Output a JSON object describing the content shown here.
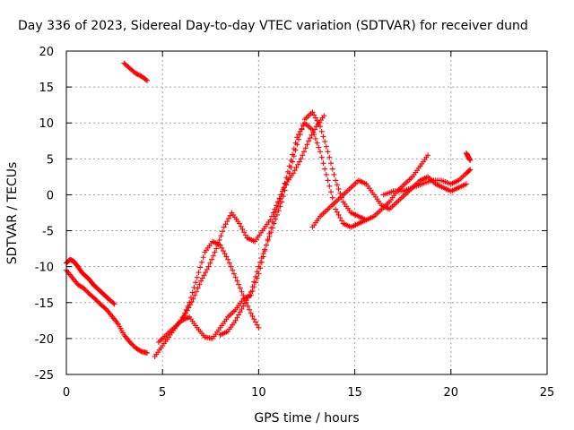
{
  "chart_data": {
    "type": "scatter",
    "title": "Day 336 of 2023, Sidereal Day-to-day VTEC variation (SDTVAR) for receiver dund",
    "xlabel": "GPS time / hours",
    "ylabel": "SDTVAR / TECUs",
    "xlim": [
      0,
      25
    ],
    "ylim": [
      -25,
      20
    ],
    "xticks": [
      "0",
      "5",
      "10",
      "15",
      "20",
      "25"
    ],
    "yticks": [
      "-25",
      "-20",
      "-15",
      "-10",
      "-5",
      "0",
      "5",
      "10",
      "15",
      "20"
    ],
    "grid": true,
    "marker": "plus",
    "color": "#ff0000",
    "series": [
      {
        "name": "arc1",
        "x": [
          0.0,
          0.3,
          0.6,
          0.9,
          1.2,
          1.5,
          1.8,
          2.1,
          2.4,
          2.7,
          3.0,
          3.3,
          3.6,
          3.9,
          4.2
        ],
        "y": [
          -10.5,
          -11.5,
          -12.5,
          -13.0,
          -13.8,
          -14.5,
          -15.3,
          -16.0,
          -17.0,
          -18.0,
          -19.5,
          -20.5,
          -21.3,
          -21.8,
          -22.0
        ]
      },
      {
        "name": "arc2",
        "x": [
          0.0,
          0.2,
          0.4,
          0.6,
          0.8,
          1.0,
          1.2,
          1.4,
          1.6,
          1.8,
          2.0,
          2.2,
          2.5
        ],
        "y": [
          -9.5,
          -9.0,
          -9.3,
          -10.0,
          -10.8,
          -11.3,
          -11.8,
          -12.5,
          -13.0,
          -13.5,
          -14.0,
          -14.5,
          -15.2
        ]
      },
      {
        "name": "arc3",
        "x": [
          3.0,
          3.3,
          3.6,
          3.9,
          4.2
        ],
        "y": [
          18.3,
          17.6,
          16.9,
          16.5,
          15.9
        ]
      },
      {
        "name": "arc4",
        "x": [
          4.6,
          5.0,
          5.4,
          5.8,
          6.2,
          6.6,
          7.0,
          7.4,
          7.8,
          8.2,
          8.6,
          9.0,
          9.4,
          9.8,
          10.2,
          10.6,
          11.0,
          11.4,
          11.8,
          12.2,
          12.6,
          13.0,
          13.4
        ],
        "y": [
          -22.5,
          -21.0,
          -19.5,
          -18.0,
          -16.5,
          -14.5,
          -12.0,
          -10.0,
          -7.5,
          -4.5,
          -2.5,
          -4.0,
          -6.0,
          -6.5,
          -5.0,
          -3.5,
          -1.0,
          1.5,
          3.0,
          5.0,
          7.5,
          9.5,
          11.0
        ]
      },
      {
        "name": "arc5",
        "x": [
          4.8,
          5.2,
          5.6,
          6.0,
          6.4,
          6.8,
          7.2,
          7.6,
          8.0,
          8.4,
          8.8,
          9.2,
          9.6,
          10.0,
          10.4,
          10.8,
          11.2,
          11.6,
          12.0,
          12.4,
          12.8,
          13.2,
          13.6,
          14.0,
          14.4,
          14.8,
          15.2,
          15.6
        ],
        "y": [
          -20.5,
          -19.5,
          -18.5,
          -17.5,
          -17.0,
          -18.5,
          -19.8,
          -20.0,
          -18.5,
          -17.0,
          -16.0,
          -14.5,
          -14.0,
          -11.0,
          -7.0,
          -4.0,
          -1.0,
          3.0,
          7.0,
          10.5,
          11.5,
          9.5,
          6.0,
          2.0,
          -1.0,
          -2.5,
          -3.0,
          -3.5
        ]
      },
      {
        "name": "arc6",
        "x": [
          6.0,
          6.4,
          6.8,
          7.2,
          7.6,
          8.0,
          8.4,
          8.8,
          9.2,
          9.6,
          10.0
        ],
        "y": [
          -17.5,
          -15.0,
          -11.5,
          -8.0,
          -6.5,
          -7.0,
          -9.0,
          -11.5,
          -14.0,
          -16.5,
          -18.5
        ]
      },
      {
        "name": "arc7",
        "x": [
          8.0,
          8.4,
          8.8,
          9.2,
          9.6,
          10.0,
          10.4,
          10.8,
          11.2,
          11.6,
          12.0,
          12.4,
          12.8,
          13.2,
          13.6,
          14.0,
          14.4,
          14.8,
          15.2,
          15.6,
          16.0,
          16.4,
          16.8,
          17.2,
          17.6,
          18.0,
          18.4,
          18.8
        ],
        "y": [
          -19.5,
          -19.0,
          -17.5,
          -15.5,
          -13.5,
          -10.0,
          -7.0,
          -3.0,
          0.0,
          4.0,
          8.0,
          10.0,
          9.0,
          6.0,
          2.0,
          -2.0,
          -4.0,
          -4.5,
          -4.0,
          -3.5,
          -3.0,
          -2.0,
          -1.0,
          0.5,
          1.5,
          2.5,
          4.0,
          5.5
        ]
      },
      {
        "name": "arc8",
        "x": [
          12.8,
          13.2,
          13.6,
          14.0,
          14.4,
          14.8,
          15.2,
          15.6,
          16.0,
          16.4,
          16.8,
          17.2,
          17.6,
          18.0,
          18.4,
          18.8,
          19.2,
          19.6,
          20.0,
          20.4,
          20.8
        ],
        "y": [
          -4.5,
          -3.0,
          -2.0,
          -1.0,
          0.0,
          1.0,
          2.0,
          1.5,
          0.0,
          -1.5,
          -2.0,
          -1.0,
          0.0,
          1.0,
          2.0,
          2.5,
          1.5,
          1.0,
          0.5,
          1.0,
          1.5
        ]
      },
      {
        "name": "arc9",
        "x": [
          16.5,
          17.0,
          17.5,
          18.0,
          18.5,
          19.0,
          19.5,
          20.0,
          20.4,
          20.8,
          21.0
        ],
        "y": [
          0.0,
          0.5,
          0.5,
          1.0,
          1.5,
          2.0,
          2.0,
          1.5,
          2.0,
          3.0,
          3.5
        ]
      },
      {
        "name": "arc10",
        "x": [
          20.8,
          20.9,
          21.0
        ],
        "y": [
          5.8,
          5.3,
          4.8
        ]
      }
    ]
  }
}
